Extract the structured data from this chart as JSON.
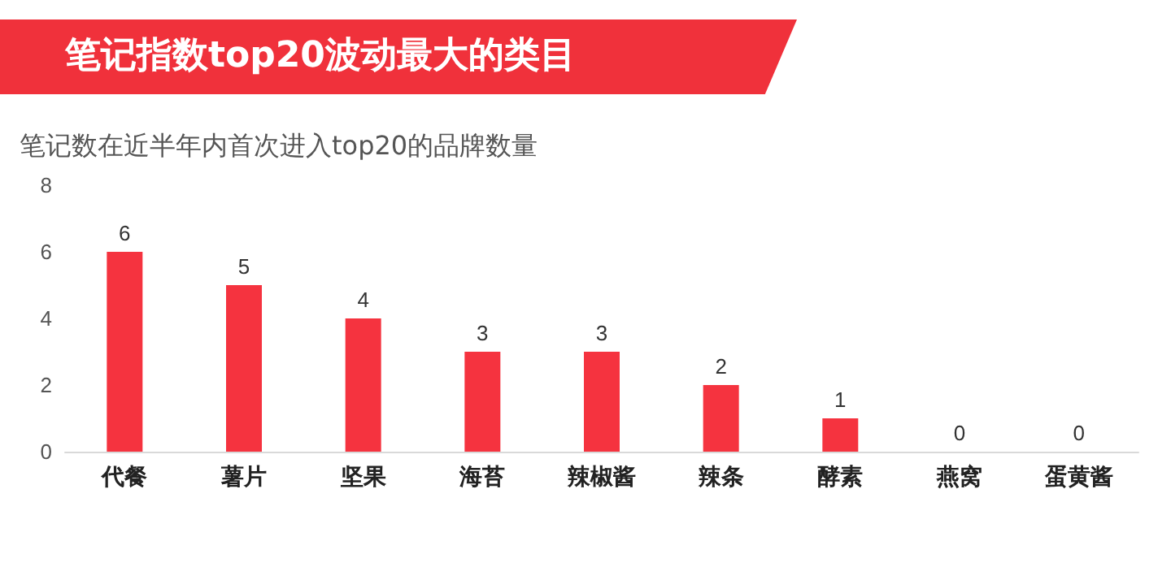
{
  "chart_data": {
    "type": "bar",
    "title": "笔记指数top20波动最大的类目",
    "subtitle": "笔记数在近半年内首次进入top20的品牌数量",
    "categories": [
      "代餐",
      "薯片",
      "坚果",
      "海苔",
      "辣椒酱",
      "辣条",
      "酵素",
      "燕窝",
      "蛋黄酱"
    ],
    "values": [
      6,
      5,
      4,
      3,
      3,
      2,
      1,
      0,
      0
    ],
    "color": "#f5333f",
    "ylim": [
      0,
      8
    ],
    "yticks": [
      0,
      2,
      4,
      6,
      8
    ],
    "grid": false,
    "data_labels": true
  }
}
